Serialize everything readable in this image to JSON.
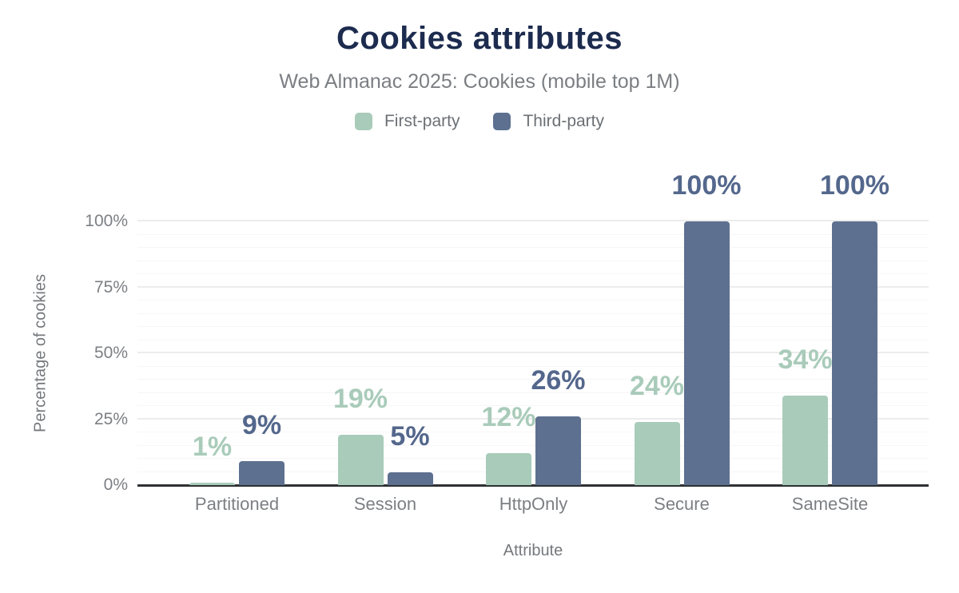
{
  "header": {
    "title": "Cookies attributes",
    "subtitle": "Web Almanac 2025: Cookies (mobile top 1M)"
  },
  "colors": {
    "title": "#1c2b4e",
    "subtitle_text": "#7b7e82",
    "axis_text": "#7c7f83",
    "axis_line": "#2e3033",
    "grid_major": "#ececec",
    "grid_minor": "#f6f6f6",
    "first_party": "#a9cbba",
    "third_party": "#5d7090",
    "third_party_label": "#54678c"
  },
  "chart_data": {
    "type": "bar",
    "title": "Cookies attributes",
    "subtitle": "Web Almanac 2025: Cookies (mobile top 1M)",
    "categories": [
      "Partitioned",
      "Session",
      "HttpOnly",
      "Secure",
      "SameSite"
    ],
    "series": [
      {
        "name": "First-party",
        "color": "#a9cbba",
        "label_color": "#a9cbba",
        "values": [
          1,
          19,
          12,
          24,
          34
        ],
        "labels": [
          "1%",
          "19%",
          "12%",
          "24%",
          "34%"
        ]
      },
      {
        "name": "Third-party",
        "color": "#5d7090",
        "label_color": "#54678c",
        "values": [
          9,
          5,
          26,
          100,
          100
        ],
        "labels": [
          "9%",
          "5%",
          "26%",
          "100%",
          "100%"
        ]
      }
    ],
    "xlabel": "Attribute",
    "ylabel": "Percentage of cookies",
    "ylim": [
      0,
      100
    ],
    "yticks": [
      {
        "value": 0,
        "label": "0%"
      },
      {
        "value": 25,
        "label": "25%"
      },
      {
        "value": 50,
        "label": "50%"
      },
      {
        "value": 75,
        "label": "75%"
      },
      {
        "value": 100,
        "label": "100%"
      }
    ],
    "grid": {
      "on": true,
      "minor_step": 5,
      "major_step": 25
    },
    "legend_position": "top"
  }
}
